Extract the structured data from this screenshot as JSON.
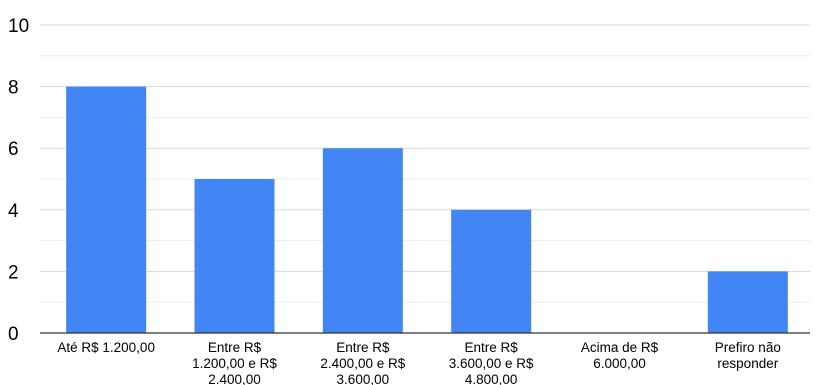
{
  "chart_data": {
    "type": "bar",
    "title": "",
    "xlabel": "",
    "ylabel": "",
    "categories": [
      [
        "Até R$ 1.200,00"
      ],
      [
        "Entre R$",
        "1.200,00 e R$",
        "2.400,00"
      ],
      [
        "Entre R$",
        "2.400,00 e R$",
        "3.600,00"
      ],
      [
        "Entre R$",
        "3.600,00 e R$",
        "4.800,00"
      ],
      [
        "Acima de R$",
        "6.000,00"
      ],
      [
        "Prefiro não",
        "responder"
      ]
    ],
    "values": [
      8,
      5,
      6,
      4,
      0,
      2
    ],
    "ylim": [
      0,
      10
    ],
    "yticks": [
      "0",
      "2",
      "4",
      "6",
      "8",
      "10"
    ],
    "grid": true,
    "bar_color": "#4285f4"
  }
}
